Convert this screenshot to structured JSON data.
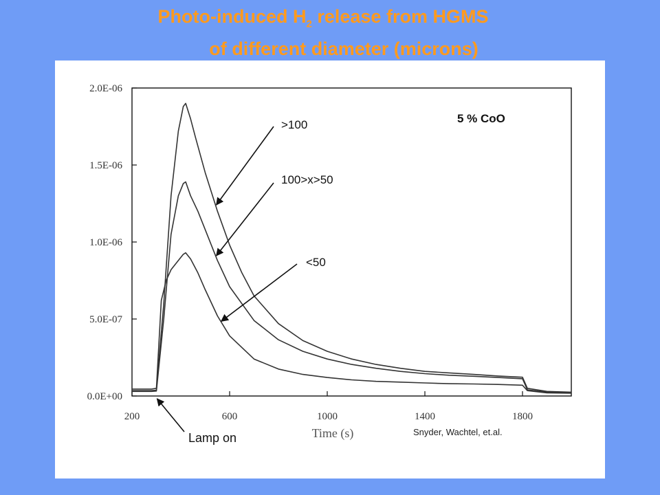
{
  "title": {
    "line1_prefix": "Photo-induced H",
    "line1_sub": "2",
    "line1_suffix": " release from HGMS",
    "line2": "of different diameter (microns)"
  },
  "colors": {
    "background": "#6f9cf6",
    "title": "#ff9a1e",
    "plot_background": "#ffffff",
    "lines": "#333333"
  },
  "annotations": {
    "condition": "5 % CoO",
    "credit": "Snyder, Wachtel, et.al.",
    "lamp": "Lamp on"
  },
  "chart_data": {
    "type": "line",
    "xlabel": "Time (s)",
    "ylabel": "",
    "xlim": [
      200,
      2000
    ],
    "ylim": [
      0,
      2e-06
    ],
    "x_ticks": [
      200,
      600,
      1000,
      1400,
      1800
    ],
    "x_tick_labels": [
      "200",
      "600",
      "1000",
      "1400",
      "1800"
    ],
    "y_ticks": [
      0,
      5e-07,
      1e-06,
      1.5e-06,
      2e-06
    ],
    "y_tick_labels": [
      "0.0E+00",
      "5.0E-07",
      "1.0E-06",
      "1.5E-06",
      "2.0E-06"
    ],
    "grid": false,
    "lamp_on_time": 300,
    "series": [
      {
        "name": ">100",
        "x": [
          200,
          280,
          300,
          330,
          360,
          390,
          410,
          420,
          440,
          460,
          500,
          550,
          600,
          650,
          700,
          800,
          900,
          1000,
          1100,
          1200,
          1300,
          1400,
          1500,
          1600,
          1700,
          1800,
          1820,
          1900,
          2000
        ],
        "y": [
          3.5e-08,
          3.5e-08,
          3.8e-08,
          6e-07,
          1.3e-06,
          1.72e-06,
          1.88e-06,
          1.9e-06,
          1.8e-06,
          1.68e-06,
          1.45e-06,
          1.2e-06,
          9.8e-07,
          8e-07,
          6.5e-07,
          4.7e-07,
          3.6e-07,
          2.9e-07,
          2.4e-07,
          2.05e-07,
          1.8e-07,
          1.6e-07,
          1.5e-07,
          1.4e-07,
          1.3e-07,
          1.22e-07,
          5e-08,
          3e-08,
          2.5e-08
        ]
      },
      {
        "name": "100>x>50",
        "x": [
          200,
          280,
          300,
          330,
          360,
          390,
          410,
          420,
          440,
          470,
          500,
          550,
          600,
          700,
          800,
          900,
          1000,
          1100,
          1200,
          1300,
          1400,
          1500,
          1600,
          1700,
          1800,
          1820,
          1900,
          2000
        ],
        "y": [
          3e-08,
          3e-08,
          3.2e-08,
          5e-07,
          1.05e-06,
          1.3e-06,
          1.38e-06,
          1.39e-06,
          1.3e-06,
          1.2e-06,
          1.08e-06,
          8.8e-07,
          7.1e-07,
          4.9e-07,
          3.65e-07,
          2.9e-07,
          2.4e-07,
          2.05e-07,
          1.8e-07,
          1.6e-07,
          1.45e-07,
          1.35e-07,
          1.28e-07,
          1.2e-07,
          1.12e-07,
          4e-08,
          2.5e-08,
          2e-08
        ]
      },
      {
        "name": "<50",
        "x": [
          200,
          280,
          300,
          320,
          340,
          360,
          390,
          410,
          420,
          440,
          470,
          500,
          550,
          600,
          700,
          800,
          900,
          1000,
          1100,
          1200,
          1300,
          1400,
          1500,
          1600,
          1700,
          1800,
          1820,
          1900,
          2000
        ],
        "y": [
          4.5e-08,
          4.5e-08,
          5e-08,
          6.2e-07,
          7.5e-07,
          8.2e-07,
          8.8e-07,
          9.2e-07,
          9.3e-07,
          8.9e-07,
          8e-07,
          6.9e-07,
          5.2e-07,
          3.9e-07,
          2.4e-07,
          1.75e-07,
          1.4e-07,
          1.2e-07,
          1.05e-07,
          9.5e-08,
          9e-08,
          8.5e-08,
          8e-08,
          7.8e-08,
          7.5e-08,
          7e-08,
          3.5e-08,
          2e-08,
          1.8e-08
        ]
      }
    ]
  }
}
